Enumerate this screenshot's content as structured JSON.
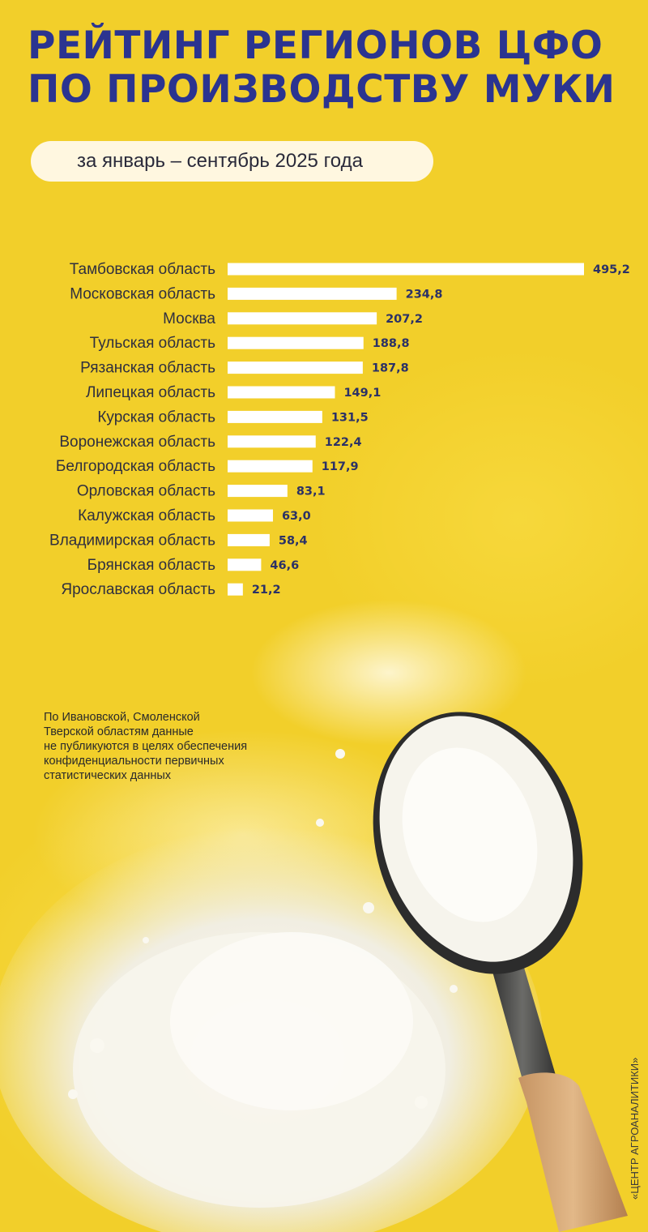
{
  "title_lines": [
    "РЕЙТИНГ РЕГИОНОВ ЦФО",
    "ПО ПРОИЗВОДСТВУ МУКИ"
  ],
  "period": "за январь – сентябрь 2025 года",
  "chart_data": {
    "type": "bar",
    "orientation": "horizontal",
    "categories": [
      "Тамбовская область",
      "Московская область",
      "Москва",
      "Тульская область",
      "Рязанская область",
      "Липецкая область",
      "Курская область",
      "Воронежская область",
      "Белгородская область",
      "Орловская область",
      "Калужская область",
      "Владимирская область",
      "Брянская область",
      "Ярославская область"
    ],
    "values": [
      495.2,
      234.8,
      207.2,
      188.8,
      187.8,
      149.1,
      131.5,
      122.4,
      117.9,
      83.1,
      63.0,
      58.4,
      46.6,
      21.2
    ],
    "value_labels": [
      "495,2",
      "234,8",
      "207,2",
      "188,8",
      "187,8",
      "149,1",
      "131,5",
      "122,4",
      "117,9",
      "83,1",
      "63,0",
      "58,4",
      "46,6",
      "21,2"
    ],
    "title": "",
    "xlabel": "",
    "ylabel": "",
    "xlim": [
      0,
      495.2
    ],
    "grid": false,
    "bar_color": "#ffffff"
  },
  "footnote_lines": [
    "По Ивановской, Смоленской",
    "Тверской областям данные",
    "не публикуются в целях обеспечения",
    "конфиденциальности первичных",
    "статистических данных"
  ],
  "credit": "«ЦЕНТР АГРОАНАЛИТИКИ»",
  "colors": {
    "background": "#f2cf2a",
    "title": "#2b3490",
    "value_label": "#2b3166",
    "pill": "#fff7e0"
  },
  "illustration": "flour-scoop-illustration"
}
